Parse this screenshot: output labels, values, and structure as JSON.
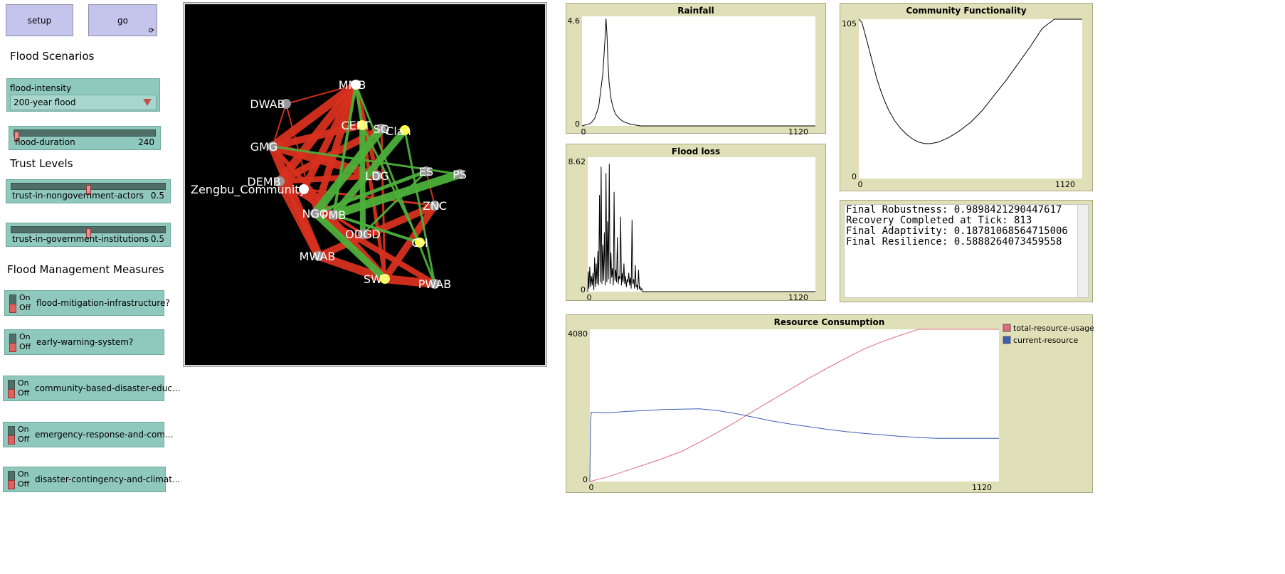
{
  "buttons": {
    "setup": "setup",
    "go": "go",
    "go_forever_icon": "⟳"
  },
  "headings": {
    "flood_scenarios": "Flood Scenarios",
    "trust_levels": "Trust Levels",
    "flood_management": "Flood Management Measures"
  },
  "chooser": {
    "label": "flood-intensity",
    "value": "200-year flood"
  },
  "sliders": {
    "flood_duration": {
      "name": "flood-duration",
      "value": "240",
      "fraction": 0.0
    },
    "trust_nongov": {
      "name": "trust-in-nongovernment-actors",
      "value": "0.5",
      "fraction": 0.5
    },
    "trust_gov": {
      "name": "trust-in-government-institutions",
      "value": "0.5",
      "fraction": 0.5
    }
  },
  "switches": {
    "on_label": "On",
    "off_label": "Off",
    "items": [
      {
        "label": "flood-mitigation-infrastructure?",
        "state": "Off"
      },
      {
        "label": "early-warning-system?",
        "state": "Off"
      },
      {
        "label": "community-based-disaster-educ...",
        "state": "Off"
      },
      {
        "label": "emergency-response-and-com...",
        "state": "Off"
      },
      {
        "label": "disaster-contingency-and-climat...",
        "state": "Off"
      }
    ]
  },
  "network": {
    "nodes": [
      {
        "id": "MMB",
        "color": "#ffffff"
      },
      {
        "id": "DWAB",
        "color": "#999999"
      },
      {
        "id": "CERT",
        "color": "#ffff40"
      },
      {
        "id": "SQ",
        "color": "#999999"
      },
      {
        "id": "Clan",
        "color": "#ffff40"
      },
      {
        "id": "GMG",
        "color": "#999999"
      },
      {
        "id": "DEMB",
        "color": "#999999"
      },
      {
        "id": "LDG",
        "color": "#999999"
      },
      {
        "id": "ES",
        "color": "#999999"
      },
      {
        "id": "PS",
        "color": "#999999"
      },
      {
        "id": "Zengbu_Community",
        "color": "#ffffff"
      },
      {
        "id": "ZNC",
        "color": "#999999"
      },
      {
        "id": "NGO",
        "color": "#999999"
      },
      {
        "id": "PMB",
        "color": "#999999"
      },
      {
        "id": "ODGD",
        "color": "#999999"
      },
      {
        "id": "CH",
        "color": "#ffff40"
      },
      {
        "id": "MWAB",
        "color": "#999999"
      },
      {
        "id": "SWS",
        "color": "#ffff40"
      },
      {
        "id": "PWAB",
        "color": "#999999"
      }
    ],
    "red_color": "#d7301f",
    "green_color": "#4caf3a"
  },
  "chart_data": [
    {
      "type": "line",
      "title": "Rainfall",
      "xlim": [
        0,
        1120
      ],
      "ylim": [
        0,
        4.6
      ],
      "x_tick_labels": [
        "0",
        "1120"
      ],
      "y_tick_labels": [
        "0",
        "4.6"
      ],
      "series": [
        {
          "name": "rainfall",
          "color": "#000000",
          "x": [
            0,
            40,
            60,
            80,
            100,
            110,
            115,
            120,
            125,
            130,
            140,
            150,
            160,
            180,
            200,
            230,
            260,
            280,
            1120
          ],
          "y": [
            0,
            0.1,
            0.3,
            0.8,
            2.2,
            3.6,
            4.5,
            3.8,
            2.6,
            1.8,
            1.1,
            0.75,
            0.5,
            0.3,
            0.17,
            0.08,
            0.03,
            0.0,
            0.0
          ]
        }
      ]
    },
    {
      "type": "line",
      "title": "Flood loss",
      "xlim": [
        0,
        1120
      ],
      "ylim": [
        0,
        8.62
      ],
      "x_tick_labels": [
        "0",
        "1120"
      ],
      "y_tick_labels": [
        "0",
        "8.62"
      ],
      "series": [
        {
          "name": "flood-loss",
          "color": "#000000",
          "x": [
            0,
            3,
            6,
            10,
            14,
            18,
            22,
            26,
            30,
            34,
            38,
            42,
            46,
            50,
            54,
            58,
            62,
            66,
            70,
            74,
            78,
            82,
            86,
            90,
            94,
            98,
            102,
            106,
            110,
            114,
            118,
            122,
            126,
            130,
            134,
            138,
            142,
            146,
            150,
            154,
            158,
            162,
            166,
            170,
            174,
            178,
            182,
            186,
            190,
            194,
            198,
            202,
            206,
            210,
            214,
            218,
            222,
            226,
            230,
            234,
            238,
            242,
            246,
            250,
            254,
            258,
            262,
            266,
            270,
            1120
          ],
          "y": [
            0,
            1.3,
            0.2,
            1.6,
            0.3,
            1.0,
            0.4,
            1.2,
            0.1,
            2.2,
            0.3,
            1.8,
            0.5,
            2.6,
            0.4,
            6.2,
            0.6,
            8.0,
            0.5,
            3.0,
            0.7,
            3.8,
            0.4,
            7.6,
            0.6,
            4.5,
            0.8,
            8.2,
            0.5,
            2.5,
            0.9,
            1.5,
            0.4,
            6.4,
            0.7,
            1.4,
            0.6,
            3.5,
            0.5,
            1.0,
            0.8,
            4.8,
            0.4,
            1.2,
            0.6,
            1.8,
            0.5,
            1.0,
            0.3,
            0.8,
            0.6,
            1.2,
            0.4,
            0.9,
            0.2,
            4.6,
            0.5,
            0.8,
            0.2,
            1.7,
            0.3,
            0.4,
            0.1,
            1.4,
            0.2,
            0.3,
            0.1,
            0.2,
            0.0,
            0.0
          ]
        }
      ]
    },
    {
      "type": "line",
      "title": "Community Functionality",
      "xlim": [
        0,
        1120
      ],
      "ylim": [
        0,
        105
      ],
      "x_tick_labels": [
        "0",
        "1120"
      ],
      "y_tick_labels": [
        "0",
        "105"
      ],
      "series": [
        {
          "name": "functionality",
          "color": "#000000",
          "x": [
            0,
            15,
            30,
            50,
            70,
            90,
            110,
            130,
            150,
            180,
            210,
            240,
            270,
            300,
            330,
            360,
            400,
            450,
            500,
            560,
            620,
            680,
            740,
            800,
            860,
            920,
            980,
            1000,
            1120
          ],
          "y": [
            105,
            103,
            96,
            86,
            76,
            66,
            58,
            51,
            45,
            38,
            33,
            29,
            26,
            24,
            23,
            23,
            24,
            27,
            31,
            37,
            45,
            55,
            65,
            76,
            87,
            99,
            105,
            105,
            105
          ]
        }
      ]
    },
    {
      "type": "line",
      "title": "Resource Consumption",
      "xlim": [
        0,
        1120
      ],
      "ylim": [
        0,
        4080
      ],
      "x_tick_labels": [
        "0",
        "1120"
      ],
      "y_tick_labels": [
        "0",
        "4080"
      ],
      "legend": "right",
      "series": [
        {
          "name": "total-resource-usage",
          "color": "#e06a84",
          "x": [
            0,
            50,
            100,
            150,
            200,
            250,
            300,
            350,
            400,
            450,
            500,
            550,
            600,
            650,
            700,
            750,
            800,
            850,
            900,
            950,
            980,
            1120
          ],
          "y": [
            0,
            130,
            290,
            450,
            620,
            800,
            1050,
            1320,
            1600,
            1900,
            2190,
            2480,
            2770,
            3040,
            3300,
            3550,
            3750,
            3920,
            4080,
            4080,
            4080,
            4080
          ]
        },
        {
          "name": "current-resource",
          "color": "#3e5db6",
          "x": [
            0,
            2,
            4,
            50,
            100,
            150,
            200,
            250,
            300,
            350,
            400,
            450,
            500,
            550,
            600,
            650,
            700,
            750,
            800,
            850,
            900,
            950,
            980,
            1120
          ],
          "y": [
            0,
            1620,
            1860,
            1840,
            1880,
            1900,
            1930,
            1940,
            1950,
            1900,
            1820,
            1720,
            1620,
            1540,
            1470,
            1400,
            1340,
            1290,
            1250,
            1210,
            1180,
            1160,
            1160,
            1160
          ]
        }
      ]
    }
  ],
  "output": {
    "lines": [
      "Final Robustness: 0.9898421290447617",
      "Recovery Completed at Tick: 813",
      "Final Adaptivity: 0.18781068564715006",
      "Final Resilience: 0.5888264073459558"
    ]
  }
}
